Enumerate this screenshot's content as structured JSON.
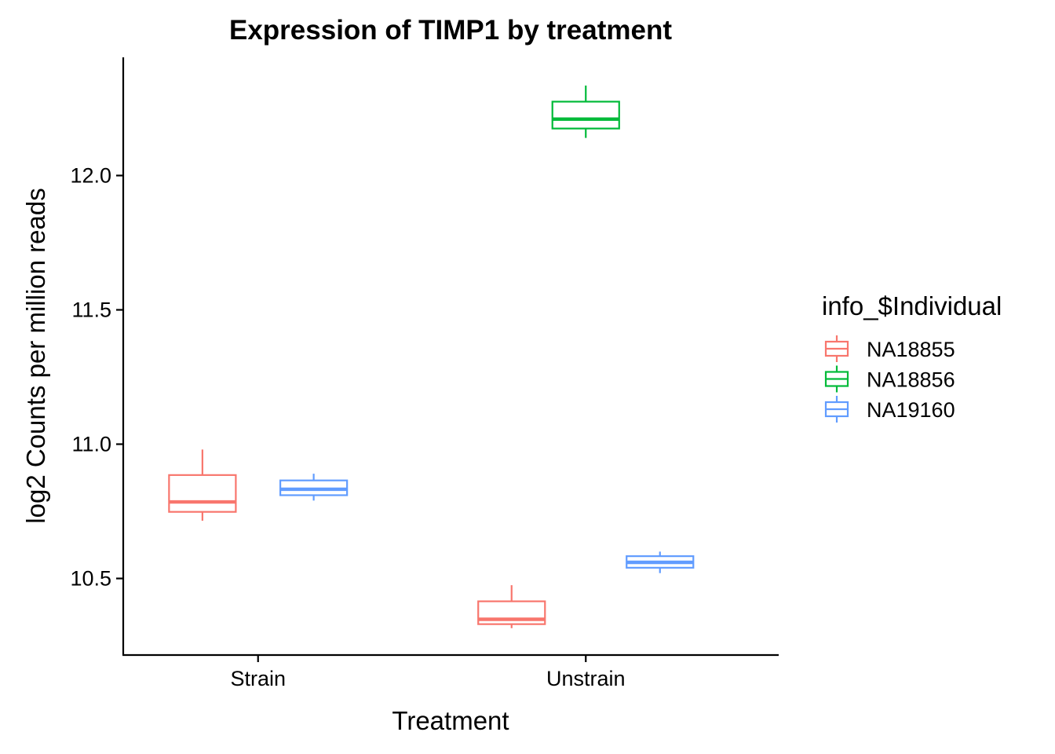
{
  "chart_data": {
    "type": "boxplot",
    "title": "Expression of TIMP1 by treatment",
    "xlabel": "Treatment",
    "ylabel": "log2 Counts per million reads",
    "categories": [
      "Strain",
      "Unstrain"
    ],
    "ylim": [
      10.215,
      12.44
    ],
    "yticks": [
      10.5,
      11.0,
      11.5,
      12.0
    ],
    "ytick_labels": [
      "10.5",
      "11.0",
      "11.5",
      "12.0"
    ],
    "grid": false,
    "legend": {
      "title": "info_$Individual",
      "position": "right"
    },
    "series": [
      {
        "name": "NA18855",
        "color": "#F8766D",
        "boxes": [
          {
            "category": "Strain",
            "min": 10.715,
            "q1": 10.748,
            "median": 10.785,
            "q3": 10.885,
            "max": 10.98
          },
          {
            "category": "Unstrain",
            "min": 10.315,
            "q1": 10.33,
            "median": 10.348,
            "q3": 10.415,
            "max": 10.475
          }
        ]
      },
      {
        "name": "NA18856",
        "color": "#00BA38",
        "boxes": [
          {
            "category": "Unstrain",
            "min": 12.14,
            "q1": 12.175,
            "median": 12.21,
            "q3": 12.275,
            "max": 12.335
          }
        ]
      },
      {
        "name": "NA19160",
        "color": "#619CFF",
        "boxes": [
          {
            "category": "Strain",
            "min": 10.79,
            "q1": 10.81,
            "median": 10.832,
            "q3": 10.865,
            "max": 10.89
          },
          {
            "category": "Unstrain",
            "min": 10.52,
            "q1": 10.54,
            "median": 10.56,
            "q3": 10.583,
            "max": 10.6
          }
        ]
      }
    ]
  }
}
